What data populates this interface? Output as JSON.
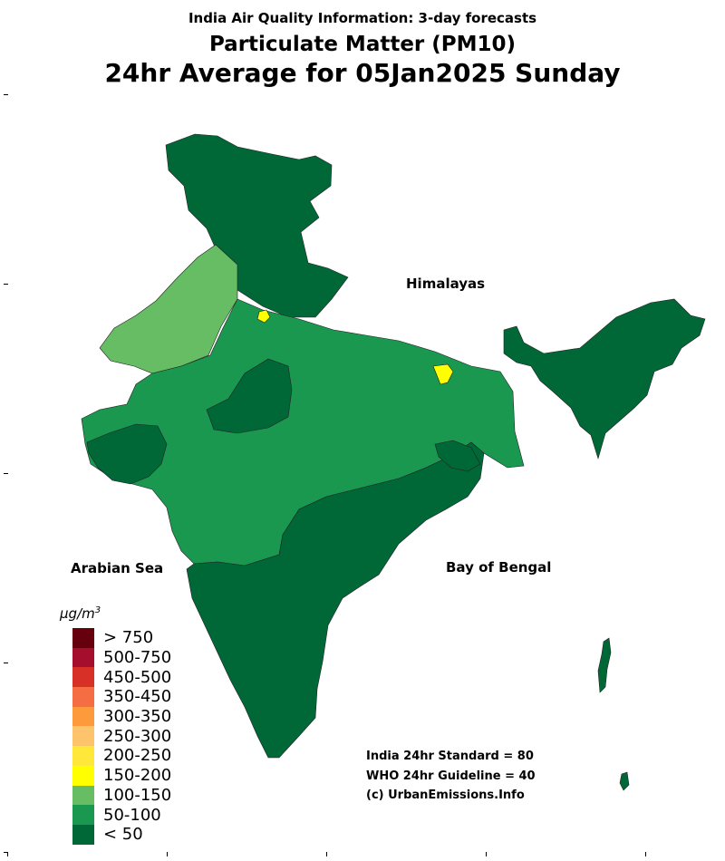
{
  "title": {
    "line1": "India Air Quality Information: 3-day forecasts",
    "line2": "Particulate Matter (PM10)",
    "line3": "24hr Average for 05Jan2025 Sunday"
  },
  "map_labels": {
    "himalayas": "Himalayas",
    "arabian_sea": "Arabian Sea",
    "bay_of_bengal": "Bay of Bengal"
  },
  "notes": {
    "india_standard": "India 24hr Standard = 80",
    "who_guideline": "WHO 24hr Guideline = 40",
    "credit": "(c) UrbanEmissions.Info"
  },
  "legend": {
    "unit_prefix": "µg/m",
    "unit_exponent": "3",
    "items": [
      {
        "label": "> 750",
        "color": "#67000d"
      },
      {
        "label": "500-750",
        "color": "#a50f2d"
      },
      {
        "label": "450-500",
        "color": "#d73027"
      },
      {
        "label": "350-450",
        "color": "#f46d43"
      },
      {
        "label": "300-350",
        "color": "#fd9a3c"
      },
      {
        "label": "250-300",
        "color": "#fec46c"
      },
      {
        "label": "200-250",
        "color": "#ffe83a"
      },
      {
        "label": "150-200",
        "color": "#ffff00"
      },
      {
        "label": "100-150",
        "color": "#66bd63"
      },
      {
        "label": "50-100",
        "color": "#1a9850"
      },
      {
        "label": "< 50",
        "color": "#006837"
      }
    ]
  },
  "regions": {
    "north_color": "#006837",
    "northwest_color": "#66bd63",
    "central_color": "#1a9850",
    "south_color": "#006837",
    "northeast_color": "#006837",
    "hotspot_color": "#ffff00"
  }
}
